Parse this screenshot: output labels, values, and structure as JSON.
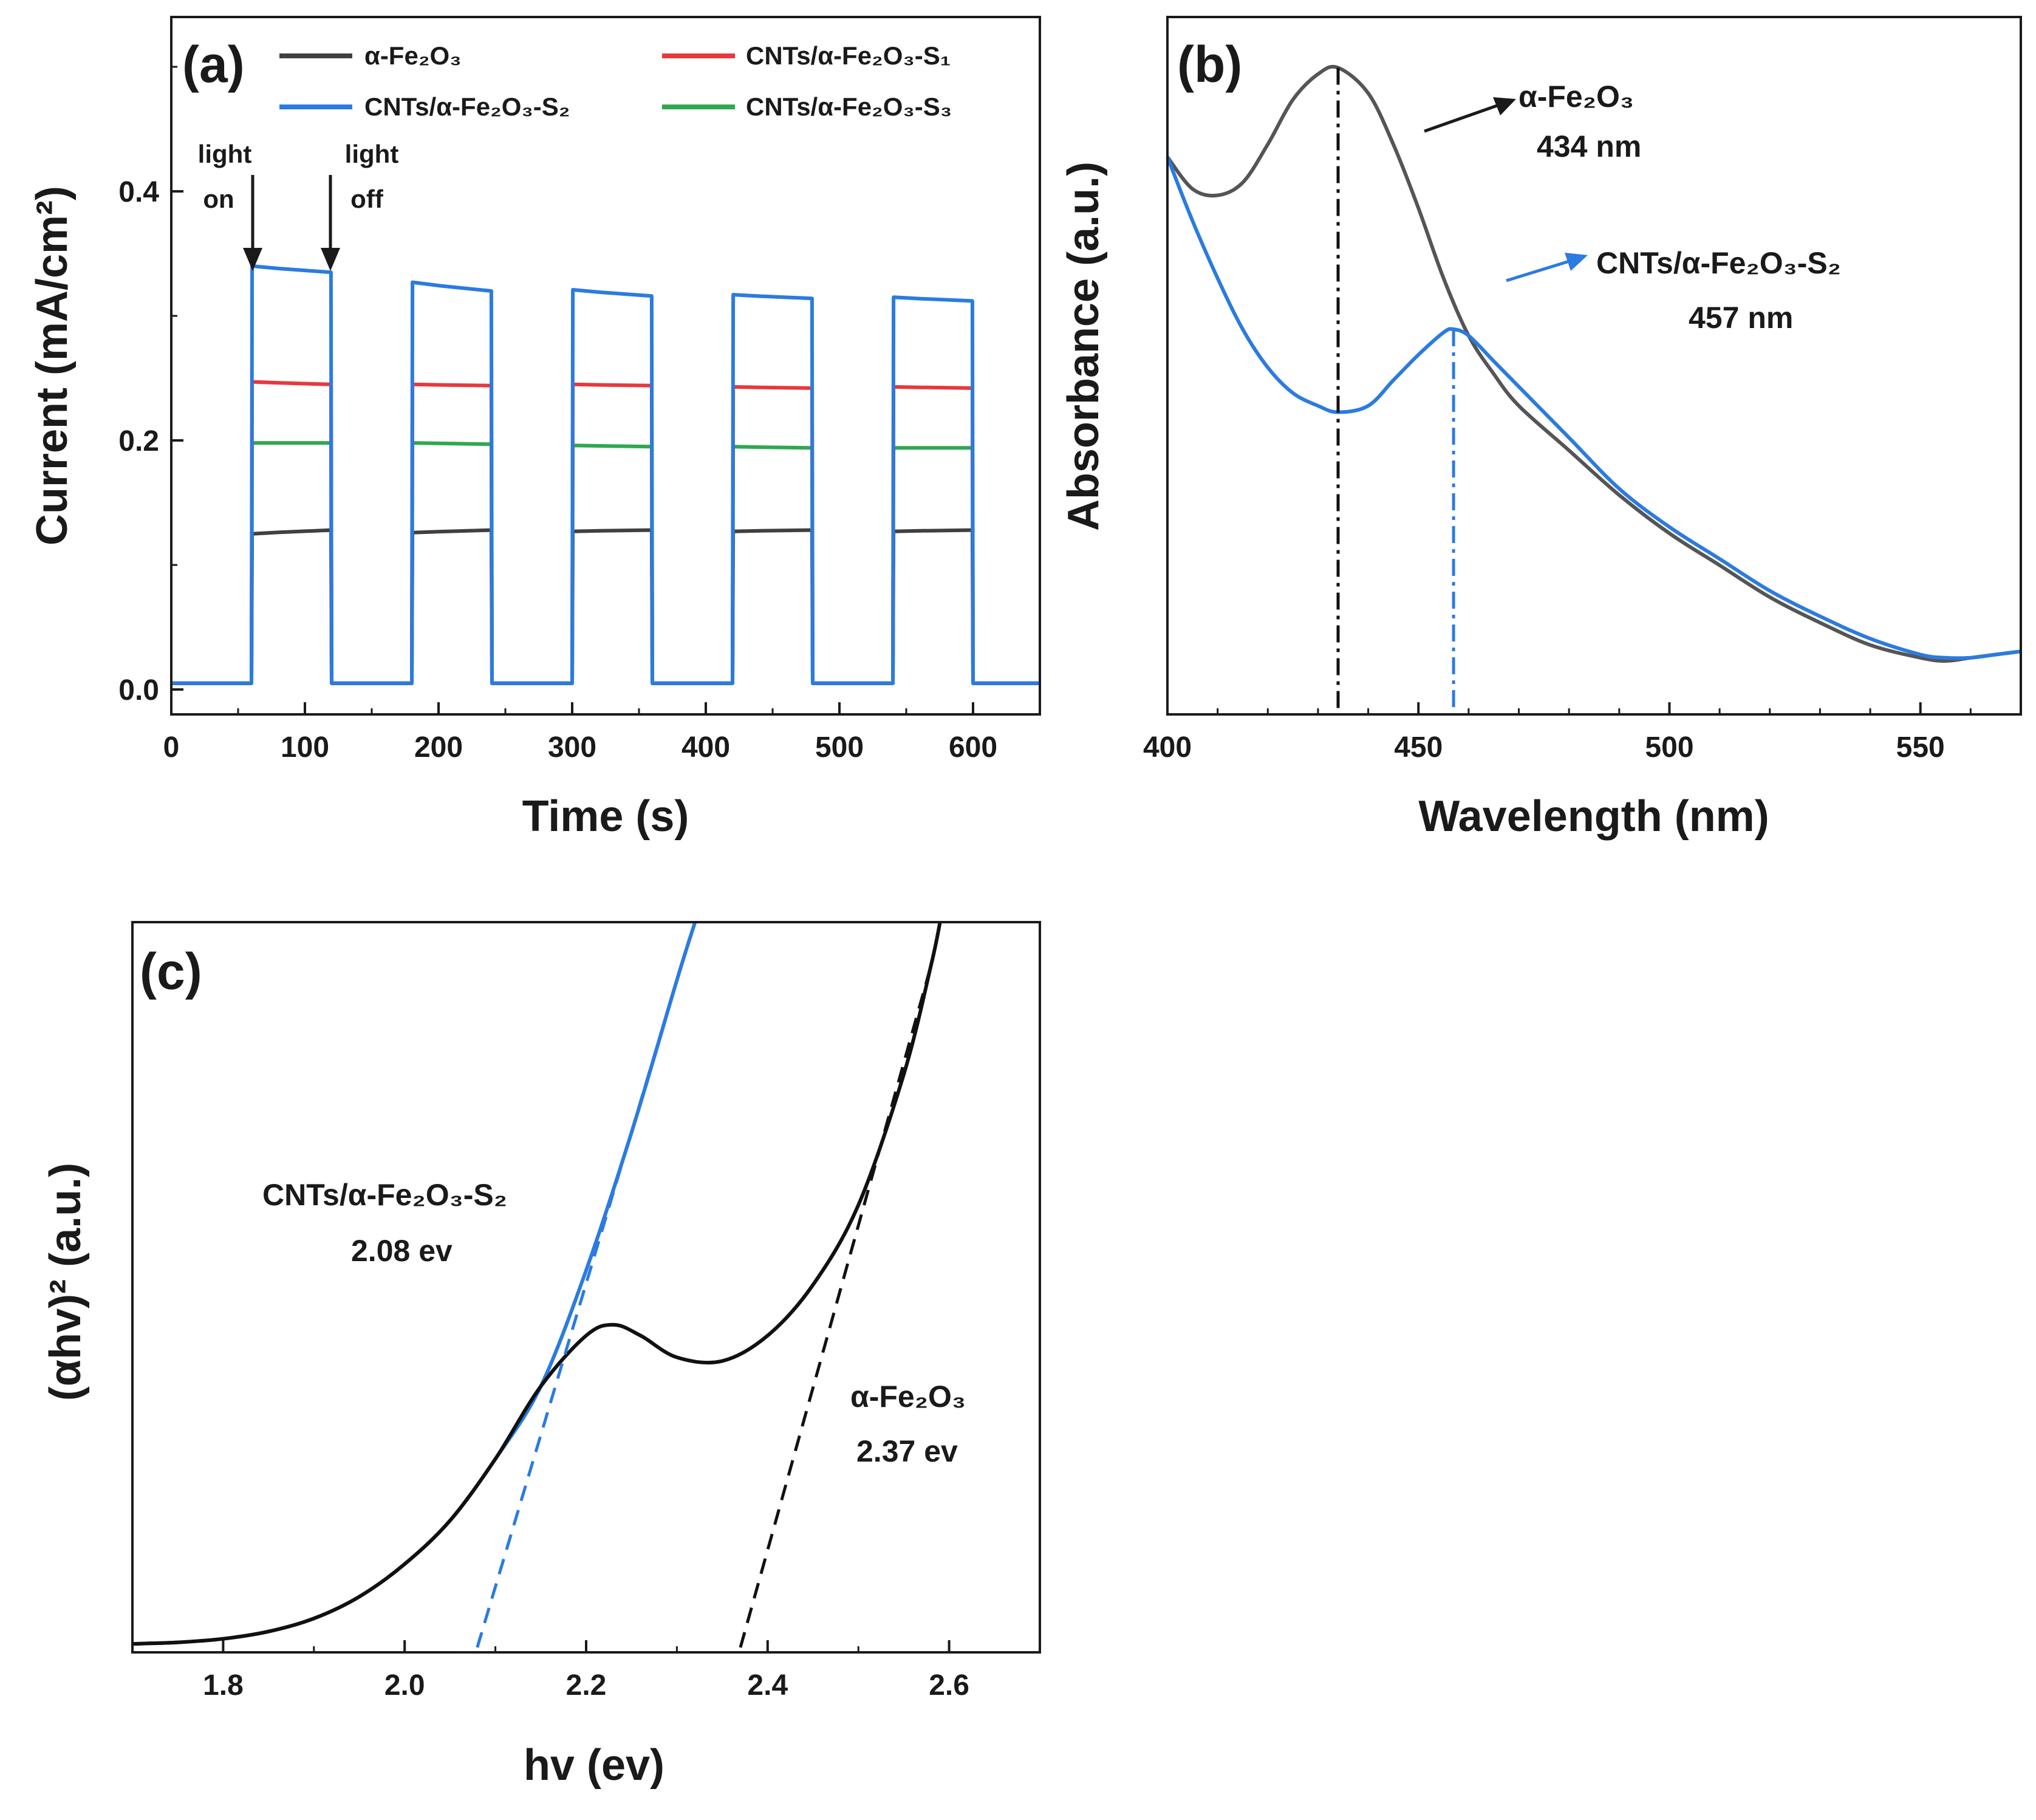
{
  "colors": {
    "black": "#404040",
    "black_b": "#555555",
    "black_c": "#111111",
    "red": "#e8383d",
    "blue": "#2b7be0",
    "green": "#2fa84f"
  },
  "chart_data": [
    {
      "panel": "(a)",
      "type": "line",
      "xlabel": "Time (s)",
      "ylabel": "Current (mA/cm²)",
      "xlim": [
        0,
        650
      ],
      "ylim": [
        -0.02,
        0.54
      ],
      "xticks": [
        0,
        100,
        200,
        300,
        400,
        500,
        600
      ],
      "yticks": [
        0.0,
        0.2,
        0.4
      ],
      "ytick_labels": [
        "0.0",
        "0.2",
        "0.4"
      ],
      "legend_position": "top",
      "dark_current": 0.005,
      "cycles": [
        [
          60,
          120
        ],
        [
          180,
          240
        ],
        [
          300,
          360
        ],
        [
          420,
          480
        ],
        [
          540,
          600
        ]
      ],
      "series": [
        {
          "name": "α-Fe₂O₃",
          "color_key": "black",
          "on_values": [
            [
              0.125,
              0.128
            ],
            [
              0.126,
              0.128
            ],
            [
              0.127,
              0.128
            ],
            [
              0.127,
              0.128
            ],
            [
              0.127,
              0.128
            ]
          ]
        },
        {
          "name": "CNTs/α-Fe₂O₃-S₁",
          "color_key": "red",
          "on_values": [
            [
              0.247,
              0.245
            ],
            [
              0.245,
              0.244
            ],
            [
              0.245,
              0.244
            ],
            [
              0.243,
              0.242
            ],
            [
              0.243,
              0.242
            ]
          ]
        },
        {
          "name": "CNTs/α-Fe₂O₃-S₂",
          "color_key": "blue",
          "on_values": [
            [
              0.34,
              0.335
            ],
            [
              0.327,
              0.32
            ],
            [
              0.321,
              0.316
            ],
            [
              0.317,
              0.314
            ],
            [
              0.315,
              0.312
            ]
          ]
        },
        {
          "name": "CNTs/α-Fe₂O₃-S₃",
          "color_key": "green",
          "on_values": [
            [
              0.198,
              0.198
            ],
            [
              0.198,
              0.197
            ],
            [
              0.196,
              0.195
            ],
            [
              0.195,
              0.194
            ],
            [
              0.194,
              0.194
            ]
          ]
        }
      ],
      "annotations": [
        {
          "text": [
            "light",
            "on"
          ],
          "x": 60
        },
        {
          "text": [
            "light",
            "off"
          ],
          "x": 120
        }
      ]
    },
    {
      "panel": "(b)",
      "type": "line",
      "xlabel": "Wavelength (nm)",
      "ylabel": "Absorbance (a.u.)",
      "xlim": [
        400,
        570
      ],
      "ylim": [
        0,
        1
      ],
      "xticks": [
        400,
        450,
        500,
        550
      ],
      "series": [
        {
          "name": "α-Fe₂O₃",
          "color_key": "black_b",
          "x": [
            400,
            405,
            410,
            415,
            420,
            425,
            430,
            434,
            440,
            445,
            450,
            455,
            460,
            465,
            470,
            480,
            490,
            500,
            510,
            520,
            530,
            540,
            550,
            555,
            560,
            565,
            570
          ],
          "y": [
            0.83,
            0.78,
            0.77,
            0.79,
            0.85,
            0.92,
            0.96,
            0.97,
            0.93,
            0.85,
            0.75,
            0.64,
            0.55,
            0.49,
            0.44,
            0.37,
            0.3,
            0.24,
            0.19,
            0.14,
            0.1,
            0.065,
            0.045,
            0.04,
            0.045,
            0.05,
            0.055
          ]
        },
        {
          "name": "CNTs/α-Fe₂O₃-S₂",
          "color_key": "blue",
          "x": [
            400,
            405,
            410,
            415,
            420,
            425,
            430,
            434,
            440,
            445,
            450,
            455,
            457,
            460,
            465,
            470,
            480,
            490,
            500,
            510,
            520,
            530,
            540,
            550,
            555,
            560,
            565,
            570
          ],
          "y": [
            0.83,
            0.73,
            0.64,
            0.56,
            0.5,
            0.46,
            0.44,
            0.43,
            0.44,
            0.48,
            0.52,
            0.555,
            0.56,
            0.55,
            0.51,
            0.47,
            0.39,
            0.31,
            0.25,
            0.2,
            0.15,
            0.11,
            0.075,
            0.05,
            0.045,
            0.045,
            0.05,
            0.055
          ]
        }
      ],
      "markers": [
        {
          "x": 434,
          "color_key": "black_c"
        },
        {
          "x": 457,
          "color_key": "blue"
        }
      ],
      "annotations": [
        {
          "label": "α-Fe₂O₃",
          "value": "434 nm",
          "color_key": "black_c"
        },
        {
          "label": "CNTs/α-Fe₂O₃-S₂",
          "value": "457 nm",
          "color_key": "blue"
        }
      ]
    },
    {
      "panel": "(c)",
      "type": "line",
      "xlabel": "hv (ev)",
      "ylabel": "(αhv)² (a.u.)",
      "xlim": [
        1.7,
        2.7
      ],
      "ylim": [
        0,
        1
      ],
      "xticks": [
        1.8,
        2.0,
        2.2,
        2.4,
        2.6
      ],
      "xtick_labels": [
        "1.8",
        "2.0",
        "2.2",
        "2.4",
        "2.6"
      ],
      "series": [
        {
          "name": "α-Fe₂O₃",
          "color_key": "black_c",
          "x": [
            1.7,
            1.75,
            1.8,
            1.85,
            1.9,
            1.95,
            2.0,
            2.05,
            2.1,
            2.15,
            2.2,
            2.23,
            2.26,
            2.3,
            2.35,
            2.4,
            2.45,
            2.5,
            2.55,
            2.58,
            2.59
          ],
          "y": [
            0.005,
            0.007,
            0.012,
            0.022,
            0.04,
            0.07,
            0.115,
            0.175,
            0.26,
            0.36,
            0.43,
            0.445,
            0.43,
            0.4,
            0.395,
            0.43,
            0.5,
            0.61,
            0.79,
            0.94,
            1.0
          ]
        },
        {
          "name": "CNTs/α-Fe₂O₃-S₂",
          "color_key": "blue",
          "x": [
            1.7,
            1.75,
            1.8,
            1.85,
            1.9,
            1.95,
            2.0,
            2.05,
            2.1,
            2.15,
            2.2,
            2.25,
            2.3,
            2.32
          ],
          "y": [
            0.005,
            0.007,
            0.012,
            0.022,
            0.04,
            0.07,
            0.115,
            0.175,
            0.26,
            0.36,
            0.52,
            0.71,
            0.92,
            1.0
          ]
        }
      ],
      "tangents": [
        {
          "series": "CNTs/α-Fe₂O₃-S₂",
          "x0": 2.08,
          "x1": 2.3,
          "color_key": "blue"
        },
        {
          "series": "α-Fe₂O₃",
          "x0": 2.37,
          "x1": 2.58,
          "color_key": "black_c"
        }
      ],
      "annotations": [
        {
          "label": "CNTs/α-Fe₂O₃-S₂",
          "value": "2.08 ev"
        },
        {
          "label": "α-Fe₂O₃",
          "value": "2.37 ev"
        }
      ]
    }
  ]
}
